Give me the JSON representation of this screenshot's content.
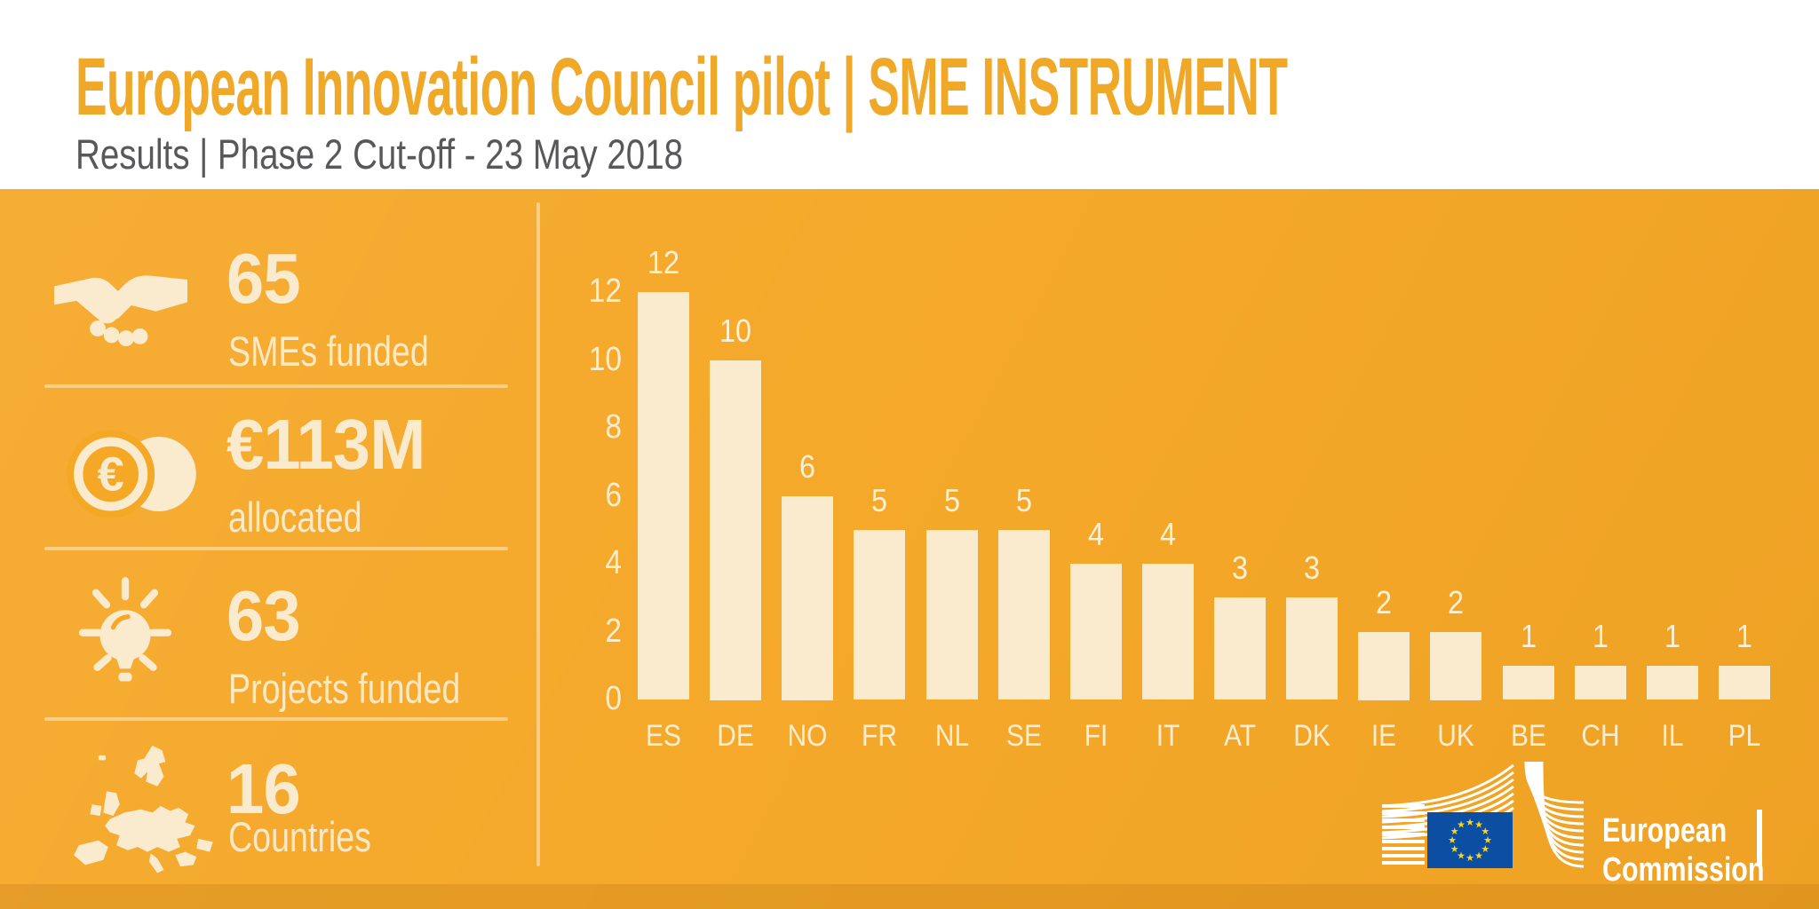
{
  "header": {
    "title": "European Innovation Council pilot | SME INSTRUMENT",
    "subtitle": "Results | Phase 2 Cut-off - 23 May 2018"
  },
  "stats": [
    {
      "value": "65",
      "label": "SMEs funded",
      "icon": "handshake-icon"
    },
    {
      "value": "€113M",
      "label": "allocated",
      "icon": "euro-coins-icon"
    },
    {
      "value": "63",
      "label": "Projects funded",
      "icon": "lightbulb-icon"
    },
    {
      "value": "16",
      "label": "Countries",
      "icon": "europe-map-icon"
    }
  ],
  "chart_data": {
    "type": "bar",
    "title": "",
    "categories": [
      "ES",
      "DE",
      "NO",
      "FR",
      "NL",
      "SE",
      "FI",
      "IT",
      "AT",
      "DK",
      "IE",
      "UK",
      "BE",
      "CH",
      "IL",
      "PL"
    ],
    "values": [
      12,
      10,
      6,
      5,
      5,
      5,
      4,
      4,
      3,
      3,
      2,
      2,
      1,
      1,
      1,
      1
    ],
    "yticks": [
      0,
      2,
      4,
      6,
      8,
      10,
      12
    ],
    "ylim": [
      0,
      12
    ],
    "xlabel": "",
    "ylabel": "",
    "grid": false,
    "legend": "none",
    "bar_color": "#FAEBCF",
    "value_labels": true
  },
  "footer": {
    "logo_line1": "European",
    "logo_line2": "Commission"
  },
  "colors": {
    "header_bg": "#FFFFFF",
    "title": "#EFA828",
    "subtitle": "#58585A",
    "background": "#F5A726",
    "cream": "#FAEBCF",
    "flag_blue": "#0B4EA2",
    "star_yellow": "#FFD617"
  }
}
